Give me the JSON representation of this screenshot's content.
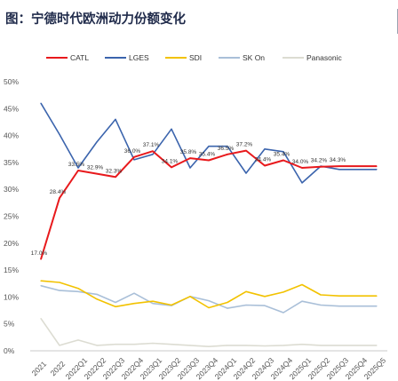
{
  "title": "图：宁德时代欧洲动力份额变化",
  "chart_data": {
    "type": "line",
    "title": "图：宁德时代欧洲动力份额变化",
    "xlabel": "",
    "ylabel": "",
    "ylim": [
      0,
      0.5
    ],
    "y_ticks": [
      "0%",
      "5%",
      "10%",
      "15%",
      "20%",
      "25%",
      "30%",
      "35%",
      "40%",
      "45%",
      "50%"
    ],
    "legend_position": "top",
    "grid": false,
    "categories": [
      "2021",
      "2022",
      "2022Q1",
      "2022Q2",
      "2022Q3",
      "2022Q4",
      "2023Q1",
      "2023Q2",
      "2023Q3",
      "2023Q4",
      "2024Q1",
      "2024Q2",
      "2024Q3",
      "2024Q4",
      "2025Q1",
      "2025Q2",
      "2025Q3",
      "2025Q4",
      "2025Q5"
    ],
    "x_tick_labels": [
      "2021",
      "2022",
      "2022Q1",
      "2022Q2",
      "2022Q3",
      "2022Q4",
      "2023Q1",
      "2023Q2",
      "2023Q3",
      "2023Q4",
      "2024Q1",
      "2024Q2",
      "2024Q3",
      "2024Q4",
      "2025Q1",
      "2025Q2",
      "2025Q3",
      "2025Q4",
      "2025Q5"
    ],
    "series": [
      {
        "name": "CATL",
        "color": "#e8191c",
        "values": [
          0.17,
          0.284,
          0.335,
          0.329,
          0.323,
          0.36,
          0.371,
          0.341,
          0.358,
          0.354,
          0.365,
          0.372,
          0.344,
          0.354,
          0.34,
          0.342,
          0.343,
          0.343,
          0.343
        ],
        "labels": [
          "17.0%",
          "28.4%",
          "33.5%",
          "32.9%",
          "32.3%",
          "36.0%",
          "37.1%",
          "34.1%",
          "35.8%",
          "35.4%",
          "36.5%",
          "37.2%",
          "34.4%",
          "35.4%",
          "34.0%",
          "34.2%",
          "34.3%",
          "",
          ""
        ]
      },
      {
        "name": "LGES",
        "color": "#3b64ad",
        "values": [
          0.46,
          0.402,
          0.34,
          0.388,
          0.43,
          0.355,
          0.365,
          0.412,
          0.34,
          0.38,
          0.38,
          0.33,
          0.375,
          0.37,
          0.312,
          0.343,
          0.337,
          0.337,
          0.337
        ]
      },
      {
        "name": "SDI",
        "color": "#f2c200",
        "values": [
          0.13,
          0.127,
          0.116,
          0.096,
          0.082,
          0.088,
          0.092,
          0.085,
          0.101,
          0.08,
          0.09,
          0.11,
          0.101,
          0.109,
          0.123,
          0.104,
          0.102,
          0.102,
          0.102
        ]
      },
      {
        "name": "SK On",
        "color": "#a9bfd8",
        "values": [
          0.121,
          0.112,
          0.11,
          0.105,
          0.09,
          0.107,
          0.088,
          0.084,
          0.101,
          0.093,
          0.079,
          0.085,
          0.084,
          0.071,
          0.092,
          0.085,
          0.083,
          0.083,
          0.083
        ]
      },
      {
        "name": "Panasonic",
        "color": "#dcdcd2",
        "values": [
          0.06,
          0.01,
          0.02,
          0.01,
          0.012,
          0.012,
          0.014,
          0.012,
          0.01,
          0.008,
          0.01,
          0.01,
          0.009,
          0.01,
          0.012,
          0.01,
          0.01,
          0.01,
          0.01
        ]
      }
    ]
  }
}
